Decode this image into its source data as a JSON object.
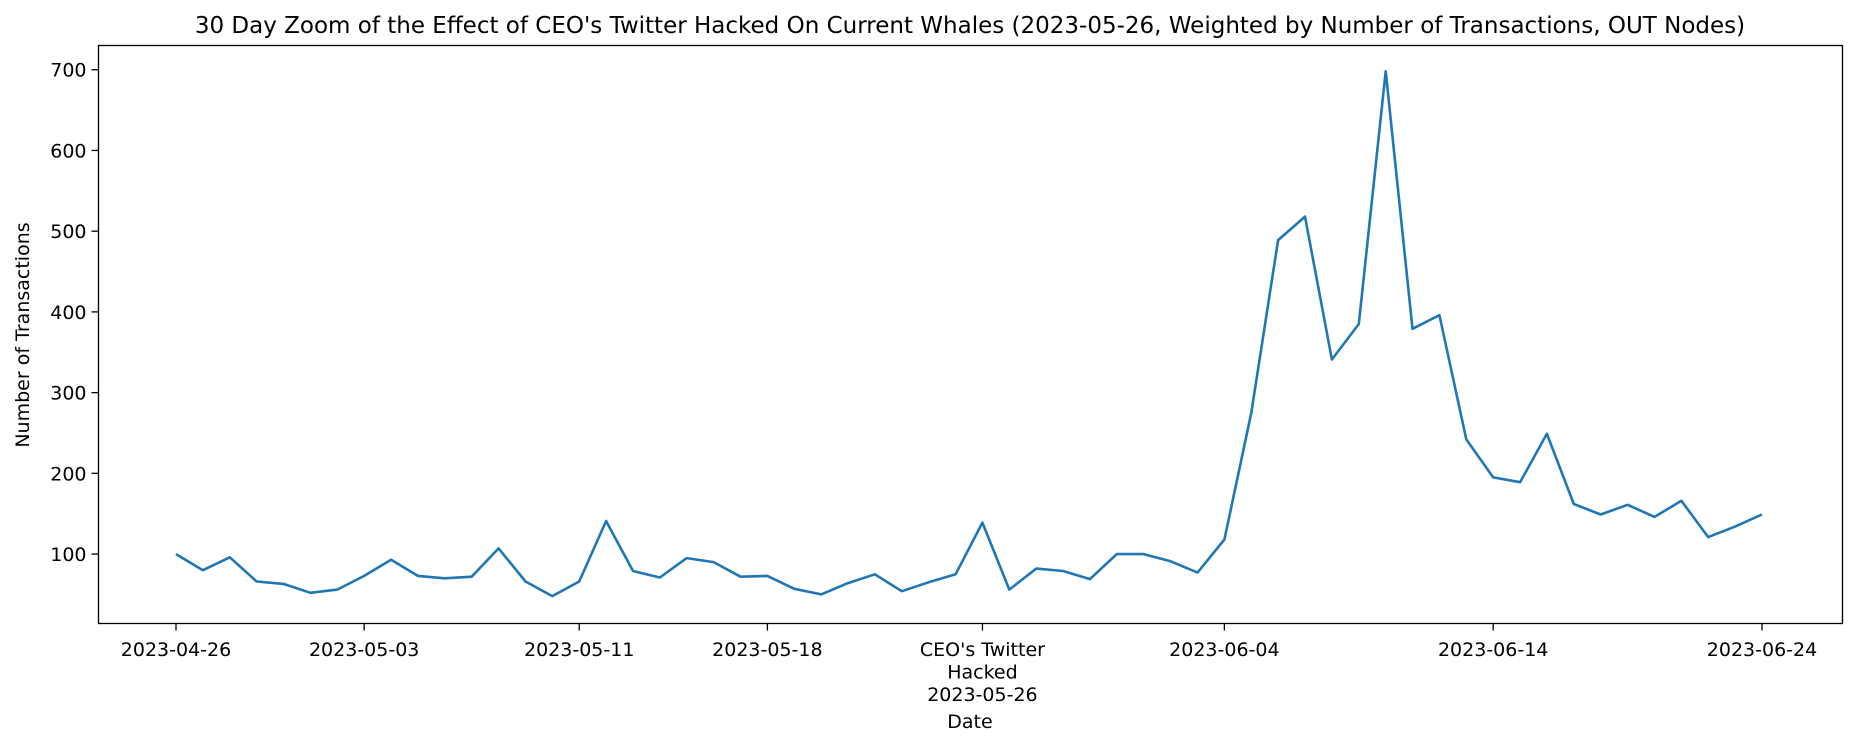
{
  "chart_data": {
    "type": "line",
    "title": "30 Day Zoom of the Effect of CEO's Twitter Hacked On Current Whales (2023-05-26, Weighted by Number of Transactions, OUT Nodes)",
    "xlabel": "Date",
    "ylabel": "Number of Transactions",
    "ylim": [
      14,
      730
    ],
    "y_ticks": [
      100,
      200,
      300,
      400,
      500,
      600,
      700
    ],
    "x_ticks": [
      {
        "date": "2023-04-26",
        "label": "2023-04-26"
      },
      {
        "date": "2023-05-03",
        "label": "2023-05-03"
      },
      {
        "date": "2023-05-11",
        "label": "2023-05-11"
      },
      {
        "date": "2023-05-18",
        "label": "2023-05-18"
      },
      {
        "date": "2023-05-26",
        "label": "CEO's Twitter\nHacked\n2023-05-26"
      },
      {
        "date": "2023-06-04",
        "label": "2023-06-04"
      },
      {
        "date": "2023-06-14",
        "label": "2023-06-14"
      },
      {
        "date": "2023-06-24",
        "label": "2023-06-24"
      }
    ],
    "grid": false,
    "series": [
      {
        "color": "#1f77b4",
        "x": [
          "2023-04-26",
          "2023-04-27",
          "2023-04-28",
          "2023-04-29",
          "2023-04-30",
          "2023-05-01",
          "2023-05-02",
          "2023-05-03",
          "2023-05-04",
          "2023-05-05",
          "2023-05-06",
          "2023-05-07",
          "2023-05-08",
          "2023-05-09",
          "2023-05-10",
          "2023-05-11",
          "2023-05-12",
          "2023-05-13",
          "2023-05-14",
          "2023-05-15",
          "2023-05-16",
          "2023-05-17",
          "2023-05-18",
          "2023-05-19",
          "2023-05-20",
          "2023-05-21",
          "2023-05-22",
          "2023-05-23",
          "2023-05-24",
          "2023-05-25",
          "2023-05-26",
          "2023-05-27",
          "2023-05-28",
          "2023-05-29",
          "2023-05-30",
          "2023-05-31",
          "2023-06-01",
          "2023-06-02",
          "2023-06-03",
          "2023-06-04",
          "2023-06-05",
          "2023-06-06",
          "2023-06-07",
          "2023-06-08",
          "2023-06-09",
          "2023-06-10",
          "2023-06-11",
          "2023-06-12",
          "2023-06-13",
          "2023-06-14",
          "2023-06-15",
          "2023-06-16",
          "2023-06-17",
          "2023-06-18",
          "2023-06-19",
          "2023-06-20",
          "2023-06-21",
          "2023-06-22",
          "2023-06-23",
          "2023-06-24"
        ],
        "values": [
          100,
          80,
          96,
          66,
          63,
          52,
          56,
          73,
          93,
          73,
          70,
          72,
          107,
          66,
          48,
          66,
          141,
          79,
          71,
          95,
          90,
          72,
          73,
          57,
          50,
          64,
          75,
          54,
          65,
          75,
          139,
          56,
          82,
          79,
          69,
          100,
          100,
          91,
          77,
          118,
          275,
          489,
          518,
          341,
          385,
          698,
          379,
          396,
          242,
          195,
          189,
          249,
          162,
          149,
          161,
          146,
          166,
          121,
          134,
          149
        ]
      }
    ]
  }
}
